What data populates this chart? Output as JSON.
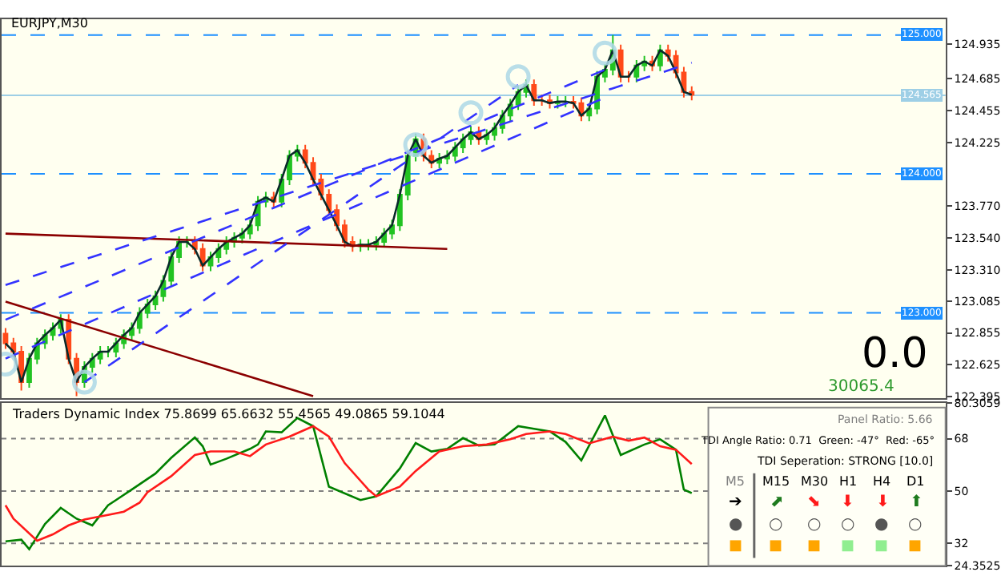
{
  "chart_data": [
    {
      "type": "candlestick",
      "title": "EURJPY,M30",
      "categories": [
        null,
        null,
        null,
        null,
        null,
        null,
        null,
        null,
        null,
        null,
        null,
        null,
        null,
        null,
        null,
        null,
        null,
        null,
        null,
        null,
        null,
        null,
        null,
        null,
        null,
        null,
        null,
        null,
        null,
        null,
        null,
        null,
        null,
        null,
        null,
        null,
        null,
        null,
        null,
        null,
        null,
        null,
        null,
        null,
        null,
        null,
        null,
        null,
        null,
        null,
        null,
        null,
        null,
        null,
        null,
        null,
        null,
        null,
        null,
        null,
        null,
        null,
        null,
        null,
        null,
        null,
        null,
        null,
        null,
        null,
        null,
        null,
        null,
        null,
        null,
        null,
        null,
        null,
        null,
        null,
        null,
        null,
        null,
        null,
        null,
        null,
        null,
        null
      ],
      "ohlc": [
        [
          122.85,
          122.89,
          122.74,
          122.78
        ],
        [
          122.78,
          122.82,
          122.68,
          122.72
        ],
        [
          122.72,
          122.76,
          122.44,
          122.5
        ],
        [
          122.5,
          122.71,
          122.46,
          122.67
        ],
        [
          122.67,
          122.82,
          122.63,
          122.78
        ],
        [
          122.78,
          122.88,
          122.74,
          122.84
        ],
        [
          122.84,
          122.93,
          122.8,
          122.89
        ],
        [
          122.89,
          122.99,
          122.85,
          122.95
        ],
        [
          122.95,
          122.99,
          122.63,
          122.67
        ],
        [
          122.67,
          122.71,
          122.4,
          122.5
        ],
        [
          122.5,
          122.65,
          122.46,
          122.61
        ],
        [
          122.61,
          122.71,
          122.57,
          122.67
        ],
        [
          122.67,
          122.76,
          122.63,
          122.72
        ],
        [
          122.72,
          122.76,
          122.68,
          122.72
        ],
        [
          122.72,
          122.82,
          122.68,
          122.78
        ],
        [
          122.78,
          122.88,
          122.74,
          122.84
        ],
        [
          122.84,
          122.93,
          122.8,
          122.89
        ],
        [
          122.89,
          123.04,
          122.85,
          123.0
        ],
        [
          123.0,
          123.1,
          122.96,
          123.06
        ],
        [
          123.06,
          123.16,
          123.02,
          123.12
        ],
        [
          123.12,
          123.27,
          123.08,
          123.23
        ],
        [
          123.23,
          123.44,
          123.19,
          123.4
        ],
        [
          123.4,
          123.55,
          123.36,
          123.51
        ],
        [
          123.51,
          123.55,
          123.47,
          123.51
        ],
        [
          123.51,
          123.55,
          123.42,
          123.46
        ],
        [
          123.46,
          123.5,
          123.3,
          123.34
        ],
        [
          123.34,
          123.44,
          123.3,
          123.4
        ],
        [
          123.4,
          123.5,
          123.36,
          123.46
        ],
        [
          123.46,
          123.55,
          123.42,
          123.51
        ],
        [
          123.51,
          123.58,
          123.47,
          123.54
        ],
        [
          123.54,
          123.61,
          123.5,
          123.57
        ],
        [
          123.57,
          123.67,
          123.53,
          123.63
        ],
        [
          123.63,
          123.84,
          123.59,
          123.8
        ],
        [
          123.8,
          123.87,
          123.76,
          123.83
        ],
        [
          123.83,
          123.87,
          123.76,
          123.8
        ],
        [
          123.8,
          124.0,
          123.76,
          123.96
        ],
        [
          123.96,
          124.17,
          123.92,
          124.13
        ],
        [
          124.13,
          124.21,
          124.09,
          124.17
        ],
        [
          124.17,
          124.21,
          124.04,
          124.08
        ],
        [
          124.08,
          124.12,
          123.92,
          123.96
        ],
        [
          123.96,
          124.0,
          123.81,
          123.85
        ],
        [
          123.85,
          123.89,
          123.7,
          123.74
        ],
        [
          123.74,
          123.78,
          123.59,
          123.63
        ],
        [
          123.63,
          123.67,
          123.47,
          123.51
        ],
        [
          123.51,
          123.55,
          123.44,
          123.48
        ],
        [
          123.48,
          123.53,
          123.44,
          123.49
        ],
        [
          123.49,
          123.53,
          123.45,
          123.49
        ],
        [
          123.49,
          123.55,
          123.45,
          123.51
        ],
        [
          123.51,
          123.61,
          123.47,
          123.57
        ],
        [
          123.57,
          123.67,
          123.53,
          123.63
        ],
        [
          123.63,
          123.89,
          123.59,
          123.85
        ],
        [
          123.85,
          124.17,
          123.81,
          124.13
        ],
        [
          124.13,
          124.29,
          124.09,
          124.25
        ],
        [
          124.25,
          124.29,
          124.09,
          124.13
        ],
        [
          124.13,
          124.17,
          124.04,
          124.08
        ],
        [
          124.08,
          124.15,
          124.04,
          124.11
        ],
        [
          124.11,
          124.17,
          124.07,
          124.13
        ],
        [
          124.13,
          124.23,
          124.09,
          124.19
        ],
        [
          124.19,
          124.29,
          124.15,
          124.25
        ],
        [
          124.25,
          124.34,
          124.21,
          124.3
        ],
        [
          124.3,
          124.34,
          124.21,
          124.25
        ],
        [
          124.25,
          124.32,
          124.21,
          124.28
        ],
        [
          124.28,
          124.37,
          124.24,
          124.33
        ],
        [
          124.33,
          124.46,
          124.29,
          124.42
        ],
        [
          124.42,
          124.54,
          124.38,
          124.5
        ],
        [
          124.5,
          124.63,
          124.46,
          124.59
        ],
        [
          124.59,
          124.68,
          124.55,
          124.64
        ],
        [
          124.64,
          124.68,
          124.49,
          124.53
        ],
        [
          124.53,
          124.57,
          124.49,
          124.53
        ],
        [
          124.53,
          124.57,
          124.47,
          124.51
        ],
        [
          124.51,
          124.56,
          124.47,
          124.52
        ],
        [
          124.52,
          124.56,
          124.48,
          124.52
        ],
        [
          124.52,
          124.56,
          124.47,
          124.51
        ],
        [
          124.51,
          124.55,
          124.38,
          124.42
        ],
        [
          124.42,
          124.51,
          124.38,
          124.47
        ],
        [
          124.47,
          124.74,
          124.43,
          124.7
        ],
        [
          124.7,
          124.79,
          124.66,
          124.75
        ],
        [
          124.75,
          125.0,
          124.71,
          124.89
        ],
        [
          124.89,
          124.93,
          124.66,
          124.7
        ],
        [
          124.7,
          124.74,
          124.66,
          124.7
        ],
        [
          124.7,
          124.82,
          124.66,
          124.78
        ],
        [
          124.78,
          124.85,
          124.74,
          124.81
        ],
        [
          124.81,
          124.85,
          124.74,
          124.78
        ],
        [
          124.78,
          124.93,
          124.74,
          124.89
        ],
        [
          124.89,
          124.93,
          124.81,
          124.85
        ],
        [
          124.85,
          124.89,
          124.69,
          124.73
        ],
        [
          124.73,
          124.77,
          124.55,
          124.59
        ],
        [
          124.59,
          124.63,
          124.53,
          124.57
        ]
      ],
      "series": [
        {
          "type": "line",
          "color": "#0a2a2a",
          "values": [
            122.78,
            122.72,
            122.5,
            122.67,
            122.78,
            122.84,
            122.89,
            122.95,
            122.67,
            122.5,
            122.61,
            122.67,
            122.72,
            122.72,
            122.78,
            122.84,
            122.89,
            123.0,
            123.06,
            123.12,
            123.23,
            123.4,
            123.51,
            123.51,
            123.46,
            123.34,
            123.4,
            123.46,
            123.51,
            123.54,
            123.57,
            123.63,
            123.8,
            123.83,
            123.8,
            123.96,
            124.13,
            124.17,
            124.08,
            123.96,
            123.85,
            123.74,
            123.63,
            123.51,
            123.48,
            123.49,
            123.49,
            123.51,
            123.57,
            123.63,
            123.85,
            124.13,
            124.25,
            124.13,
            124.08,
            124.11,
            124.13,
            124.19,
            124.25,
            124.3,
            124.25,
            124.28,
            124.33,
            124.42,
            124.5,
            124.59,
            124.64,
            124.53,
            124.53,
            124.51,
            124.52,
            124.52,
            124.51,
            124.42,
            124.47,
            124.7,
            124.75,
            124.89,
            124.7,
            124.7,
            124.78,
            124.81,
            124.78,
            124.89,
            124.85,
            124.73,
            124.59,
            124.57
          ]
        },
        {
          "type": "line",
          "color": "#8b0000",
          "values": [
            123.57,
            null,
            null,
            null,
            null,
            null,
            null,
            null,
            null,
            null,
            null,
            null,
            null,
            null,
            null,
            null,
            null,
            null,
            null,
            null,
            null,
            null,
            null,
            null,
            null,
            null,
            null,
            null,
            null,
            null,
            null,
            null,
            null,
            null,
            null,
            null,
            null,
            null,
            null,
            null,
            null,
            null,
            null,
            null,
            null,
            null,
            null,
            null,
            null,
            null,
            null,
            null,
            null,
            null,
            null,
            null,
            123.46,
            null,
            null,
            null,
            null,
            null,
            null,
            null,
            null,
            null,
            null,
            null,
            null,
            null,
            null,
            null,
            null,
            null,
            null,
            null,
            null,
            null,
            null,
            null,
            null,
            null,
            null,
            null,
            null,
            null,
            null,
            null
          ]
        },
        {
          "type": "line",
          "color": "#8b0000",
          "values": [
            123.08,
            null,
            null,
            null,
            null,
            null,
            null,
            null,
            null,
            null,
            null,
            null,
            null,
            null,
            null,
            null,
            null,
            null,
            null,
            null,
            null,
            null,
            null,
            null,
            null,
            null,
            null,
            null,
            null,
            null,
            null,
            null,
            null,
            null,
            null,
            null,
            null,
            null,
            null,
            122.4,
            null,
            null,
            null,
            null,
            null,
            null,
            null,
            null,
            null,
            null,
            null,
            null,
            null,
            null,
            null,
            null,
            null,
            null,
            null,
            null,
            null,
            null,
            null,
            null,
            null,
            null,
            null,
            null,
            null,
            null,
            null,
            null,
            null,
            null,
            null,
            null,
            null,
            null,
            null,
            null,
            null,
            null,
            null,
            null,
            null,
            null,
            null,
            null
          ]
        },
        {
          "type": "line",
          "color": "#3333ff",
          "line_style": "dashed",
          "values": [
            122.67,
            null,
            null,
            null,
            null,
            null,
            null,
            null,
            null,
            null,
            null,
            null,
            null,
            null,
            null,
            null,
            null,
            null,
            null,
            null,
            null,
            null,
            null,
            null,
            null,
            null,
            null,
            null,
            null,
            null,
            null,
            null,
            null,
            null,
            null,
            null,
            null,
            null,
            null,
            null,
            null,
            null,
            null,
            null,
            null,
            null,
            null,
            null,
            null,
            null,
            null,
            null,
            null,
            null,
            null,
            null,
            null,
            null,
            null,
            null,
            null,
            null,
            null,
            null,
            null,
            null,
            null,
            null,
            null,
            null,
            null,
            null,
            null,
            null,
            null,
            null,
            124.55,
            null,
            null,
            null,
            null,
            null,
            null,
            null,
            null,
            null,
            null,
            null
          ]
        },
        {
          "type": "line",
          "color": "#3333ff",
          "line_style": "dashed",
          "values": [
            122.95,
            null,
            null,
            null,
            null,
            null,
            null,
            null,
            null,
            null,
            null,
            null,
            null,
            null,
            null,
            null,
            null,
            null,
            null,
            null,
            null,
            null,
            null,
            null,
            null,
            null,
            null,
            null,
            null,
            null,
            null,
            null,
            null,
            null,
            null,
            null,
            null,
            null,
            null,
            null,
            null,
            null,
            null,
            null,
            null,
            null,
            null,
            null,
            null,
            null,
            null,
            null,
            null,
            null,
            null,
            null,
            null,
            null,
            null,
            null,
            null,
            null,
            null,
            null,
            null,
            null,
            null,
            null,
            null,
            null,
            null,
            null,
            null,
            null,
            null,
            null,
            124.75,
            null,
            null,
            null,
            null,
            null,
            null,
            null,
            null,
            null,
            null,
            null
          ]
        },
        {
          "type": "line",
          "color": "#3333ff",
          "line_style": "dashed",
          "values": [
            null,
            null,
            null,
            null,
            null,
            null,
            null,
            null,
            null,
            null,
            122.5,
            null,
            null,
            null,
            null,
            null,
            null,
            null,
            null,
            null,
            null,
            null,
            null,
            null,
            null,
            null,
            null,
            null,
            null,
            null,
            null,
            null,
            null,
            null,
            null,
            null,
            null,
            null,
            null,
            null,
            null,
            null,
            null,
            null,
            null,
            null,
            null,
            null,
            null,
            null,
            null,
            null,
            null,
            null,
            null,
            null,
            null,
            null,
            null,
            null,
            null,
            null,
            null,
            null,
            null,
            124.64,
            null,
            null,
            null,
            null,
            null,
            null,
            null,
            null,
            null,
            null,
            null,
            null,
            null,
            null,
            null,
            null,
            null,
            null,
            null,
            null,
            null,
            null
          ]
        },
        {
          "type": "line",
          "color": "#3333ff",
          "line_style": "dashed",
          "values": [
            123.2,
            null,
            null,
            null,
            null,
            null,
            null,
            null,
            null,
            null,
            null,
            null,
            null,
            null,
            null,
            null,
            null,
            null,
            null,
            null,
            null,
            null,
            null,
            null,
            null,
            null,
            null,
            null,
            null,
            null,
            null,
            null,
            null,
            null,
            null,
            null,
            null,
            null,
            null,
            null,
            null,
            null,
            null,
            null,
            null,
            null,
            null,
            null,
            null,
            null,
            null,
            null,
            null,
            null,
            null,
            null,
            null,
            null,
            null,
            null,
            null,
            null,
            null,
            null,
            null,
            null,
            null,
            null,
            null,
            null,
            null,
            null,
            null,
            null,
            null,
            null,
            null,
            null,
            null,
            null,
            null,
            null,
            null,
            null,
            null,
            null,
            null,
            124.8
          ]
        },
        {
          "type": "scatter",
          "color": "#add8e6",
          "values": [
            122.63,
            null,
            null,
            null,
            null,
            null,
            null,
            null,
            null,
            null,
            122.5,
            null,
            null,
            null,
            null,
            null,
            null,
            null,
            null,
            null,
            null,
            null,
            null,
            null,
            null,
            null,
            null,
            null,
            null,
            null,
            null,
            null,
            null,
            null,
            null,
            null,
            null,
            null,
            null,
            null,
            null,
            null,
            null,
            null,
            null,
            null,
            null,
            null,
            null,
            null,
            null,
            null,
            124.21,
            null,
            null,
            null,
            null,
            null,
            null,
            124.44,
            null,
            null,
            null,
            null,
            null,
            124.7,
            null,
            null,
            null,
            null,
            null,
            null,
            null,
            null,
            null,
            null,
            124.87,
            null,
            null,
            null,
            null,
            null,
            null,
            null,
            null,
            null,
            null,
            null
          ]
        }
      ],
      "ylim": [
        122.384,
        125.116
      ],
      "yticks": [
        {
          "value": 122.395,
          "label": "122.395"
        },
        {
          "value": 122.625,
          "label": "122.625"
        },
        {
          "value": 122.855,
          "label": "122.855"
        },
        {
          "value": 123.085,
          "label": "123.085"
        },
        {
          "value": 123.31,
          "label": "123.310"
        },
        {
          "value": 123.54,
          "label": "123.540"
        },
        {
          "value": 123.77,
          "label": "123.770"
        },
        {
          "value": 124.225,
          "label": "124.225"
        },
        {
          "value": 124.455,
          "label": "124.455"
        },
        {
          "value": 124.685,
          "label": "124.685"
        },
        {
          "value": 124.935,
          "label": "124.935"
        }
      ],
      "ref_lines": [
        {
          "axis": "y",
          "value": 125,
          "label": "125.000",
          "color": "#1e90ff",
          "line_style": "dashed"
        },
        {
          "axis": "y",
          "value": 124,
          "label": "124.000",
          "color": "#1e90ff",
          "line_style": "dashed"
        },
        {
          "axis": "y",
          "value": 123,
          "label": "123.000",
          "color": "#1e90ff",
          "line_style": "dashed"
        },
        {
          "axis": "y",
          "value": 124.565,
          "label": "124.565",
          "color": "#9ecfe6",
          "line_style": "solid"
        }
      ],
      "annotations": [
        "0.0",
        "30065.4"
      ],
      "tick_labels": "y",
      "grid": false
    },
    {
      "type": "line",
      "title": "Traders Dynamic Index 75.8699 65.6632 55.4565 49.0865 59.1044",
      "categories": [
        null,
        null,
        null,
        null,
        null,
        null,
        null,
        null,
        null,
        null,
        null,
        null,
        null,
        null,
        null,
        null,
        null,
        null,
        null,
        null,
        null,
        null,
        null,
        null,
        null,
        null,
        null,
        null,
        null,
        null,
        null,
        null,
        null,
        null,
        null,
        null,
        null,
        null,
        null,
        null,
        null,
        null,
        null,
        null,
        null,
        null,
        null,
        null,
        null,
        null,
        null,
        null,
        null,
        null,
        null,
        null,
        null,
        null,
        null,
        null,
        null,
        null,
        null,
        null,
        null,
        null,
        null,
        null,
        null,
        null,
        null,
        null,
        null,
        null,
        null,
        null,
        null,
        null,
        null,
        null,
        null,
        null,
        null,
        null,
        null,
        null,
        null,
        null
      ],
      "series": [
        {
          "color": "#008000",
          "values": [
            32.7,
            null,
            33.3,
            30.0,
            null,
            38.7,
            null,
            44.2,
            null,
            40.5,
            null,
            38.2,
            null,
            45.1,
            46.9,
            null,
            50.5,
            null,
            null,
            56.0,
            null,
            61.4,
            null,
            null,
            68.4,
            65.4,
            59.1,
            null,
            61.1,
            null,
            null,
            64.5,
            66.0,
            70.5,
            null,
            70.2,
            null,
            75.1,
            null,
            72.3,
            null,
            51.5,
            null,
            null,
            null,
            46.9,
            null,
            48.2,
            null,
            null,
            57.8,
            null,
            66.5,
            null,
            63.6,
            null,
            64.5,
            null,
            68.2,
            null,
            65.6,
            null,
            66.0,
            null,
            null,
            72.3,
            null,
            71.4,
            null,
            70.5,
            null,
            66.9,
            null,
            60.5,
            null,
            null,
            76.0,
            null,
            62.4,
            null,
            null,
            66.0,
            null,
            67.8,
            null,
            64.2,
            50.5,
            49.3
          ]
        },
        {
          "color": "#ff1a1a",
          "values": [
            45.1,
            40.5,
            null,
            null,
            32.9,
            null,
            35.1,
            null,
            38.2,
            null,
            40.2,
            null,
            null,
            41.8,
            null,
            42.9,
            null,
            46.0,
            49.6,
            null,
            null,
            55.1,
            null,
            null,
            62.4,
            null,
            63.6,
            null,
            null,
            63.6,
            null,
            62.0,
            null,
            66.0,
            null,
            null,
            68.7,
            null,
            null,
            72.3,
            null,
            68.7,
            null,
            59.6,
            null,
            null,
            50.5,
            48.2,
            null,
            null,
            51.5,
            null,
            56.9,
            null,
            null,
            63.6,
            null,
            null,
            65.4,
            null,
            null,
            66.0,
            null,
            null,
            67.8,
            null,
            69.6,
            null,
            null,
            70.5,
            null,
            69.6,
            null,
            null,
            66.4,
            null,
            null,
            68.7,
            null,
            67.3,
            null,
            68.4,
            null,
            65.4,
            null,
            64.2,
            null,
            59.3
          ]
        }
      ],
      "ylim": [
        24.3525,
        80.3059
      ],
      "yticks": [
        {
          "value": 80.3059,
          "label": "80.3059"
        },
        68,
        50,
        32,
        {
          "value": 24.3525,
          "label": "24.3525"
        }
      ],
      "ref_lines": [
        {
          "axis": "y",
          "value": 68,
          "color": "#808080",
          "line_style": "dotted"
        },
        {
          "axis": "y",
          "value": 50,
          "color": "#808080",
          "line_style": "dotted"
        },
        {
          "axis": "y",
          "value": 32,
          "color": "#808080",
          "line_style": "dotted"
        }
      ],
      "annotations": [
        "Panel Ratio: 5.66",
        "TDI Angle Ratio: 0.71  Green: -47°  Red: -65°",
        "TDI Seperation: STRONG [10.0]",
        "M5",
        "M15",
        "M30",
        "H1",
        "H4",
        "D1",
        "➔",
        "⬈",
        "⬊",
        "⬇",
        "⬇",
        "⬆",
        "●",
        "○",
        "○",
        "○",
        "●",
        "○",
        "■",
        "■",
        "■",
        "■",
        "■",
        "■"
      ],
      "tick_labels": "y",
      "grid": false
    }
  ]
}
